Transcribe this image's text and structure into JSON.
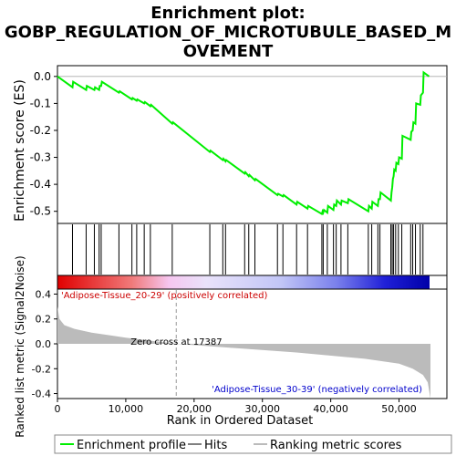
{
  "chart_data": {
    "type": "line",
    "title_line1": "Enrichment plot:",
    "title_line2": "GOBP_REGULATION_OF_MICROTUBULE_BASED_M",
    "title_line3": "OVEMENT",
    "top_panel": {
      "ylabel": "Enrichment score (ES)",
      "ylim": [
        -0.545,
        0.04
      ],
      "yticks": [
        0.0,
        -0.1,
        -0.2,
        -0.3,
        -0.4,
        -0.5
      ],
      "ytick_labels": [
        "0.0",
        "-0.1",
        "-0.2",
        "-0.3",
        "-0.4",
        "-0.5"
      ],
      "series": [
        {
          "name": "Enrichment profile",
          "color": "#00ee00",
          "x": [
            0,
            2200,
            2300,
            4200,
            4300,
            5400,
            5500,
            6100,
            6200,
            6400,
            6500,
            9000,
            9100,
            10900,
            11000,
            11600,
            11700,
            12700,
            12800,
            13600,
            13700,
            16800,
            16900,
            22300,
            22400,
            24200,
            24300,
            24600,
            24700,
            27400,
            27500,
            28000,
            28100,
            28900,
            29000,
            32200,
            32300,
            33000,
            33100,
            35000,
            35100,
            36600,
            36700,
            38700,
            38800,
            38900,
            39000,
            39500,
            39600,
            40400,
            40500,
            40800,
            40900,
            41500,
            41600,
            42500,
            42600,
            45500,
            45600,
            46000,
            46100,
            46900,
            47000,
            47200,
            47300,
            48800,
            48900,
            49000,
            49100,
            49200,
            49300,
            49500,
            49600,
            49900,
            50000,
            50400,
            50500,
            51700,
            51800,
            52000,
            52100,
            52400,
            52500,
            53100,
            53200,
            53500,
            53600,
            54400
          ],
          "y": [
            0.0,
            -0.04,
            -0.02,
            -0.05,
            -0.035,
            -0.05,
            -0.04,
            -0.05,
            -0.035,
            -0.035,
            -0.02,
            -0.06,
            -0.055,
            -0.085,
            -0.08,
            -0.09,
            -0.085,
            -0.1,
            -0.095,
            -0.11,
            -0.105,
            -0.175,
            -0.17,
            -0.28,
            -0.275,
            -0.31,
            -0.305,
            -0.315,
            -0.31,
            -0.36,
            -0.355,
            -0.37,
            -0.365,
            -0.385,
            -0.38,
            -0.44,
            -0.435,
            -0.445,
            -0.44,
            -0.475,
            -0.465,
            -0.49,
            -0.48,
            -0.51,
            -0.5,
            -0.505,
            -0.495,
            -0.505,
            -0.48,
            -0.495,
            -0.475,
            -0.48,
            -0.46,
            -0.475,
            -0.46,
            -0.47,
            -0.455,
            -0.5,
            -0.48,
            -0.49,
            -0.465,
            -0.48,
            -0.455,
            -0.455,
            -0.43,
            -0.46,
            -0.43,
            -0.41,
            -0.38,
            -0.37,
            -0.345,
            -0.35,
            -0.32,
            -0.325,
            -0.3,
            -0.305,
            -0.22,
            -0.235,
            -0.205,
            -0.2,
            -0.17,
            -0.175,
            -0.1,
            -0.105,
            -0.07,
            -0.06,
            0.015,
            0.0
          ]
        }
      ]
    },
    "hits": {
      "name": "Hits",
      "x": [
        2200,
        4200,
        5400,
        6100,
        6400,
        9000,
        10900,
        11600,
        12700,
        13600,
        16800,
        22300,
        24200,
        24600,
        27400,
        28000,
        28900,
        32200,
        33000,
        35000,
        36600,
        38700,
        38900,
        39500,
        40400,
        40800,
        41500,
        42500,
        45500,
        46000,
        46900,
        47200,
        48800,
        49000,
        49200,
        49500,
        49900,
        50400,
        51700,
        52000,
        52400,
        53100,
        53500
      ]
    },
    "bottom_panel": {
      "ylabel": "Ranked list metric (Signal2Noise)",
      "xlabel": "Rank in Ordered Dataset",
      "xlim": [
        0,
        57000
      ],
      "ylim": [
        -0.44,
        0.44
      ],
      "yticks": [
        0.4,
        0.2,
        0.0,
        -0.2,
        -0.4
      ],
      "ytick_labels": [
        "0.4",
        "0.2",
        "0.0",
        "-0.2",
        "-0.4"
      ],
      "xticks": [
        0,
        10000,
        20000,
        30000,
        40000,
        50000
      ],
      "xtick_labels": [
        "0",
        "10,000",
        "20,000",
        "30,000",
        "40,000",
        "50,000"
      ],
      "metric_x": [
        0,
        300,
        1000,
        2500,
        5000,
        10000,
        17387,
        25000,
        35000,
        45000,
        50000,
        52000,
        53500,
        54200,
        54600
      ],
      "metric_y": [
        0.3,
        0.2,
        0.15,
        0.12,
        0.09,
        0.05,
        0.0,
        -0.03,
        -0.07,
        -0.12,
        -0.16,
        -0.2,
        -0.25,
        -0.31,
        -0.44
      ],
      "zero_cross_x": 17387,
      "zero_cross_label": "Zero cross at 17387",
      "pos_label": "'Adipose-Tissue_20-29' (positively correlated)",
      "neg_label": "'Adipose-Tissue_30-39' (negatively correlated)",
      "pos_color": "#cc0000",
      "neg_color": "#0000cc"
    },
    "legend": {
      "placement": "bottom",
      "items": [
        {
          "label": "Enrichment profile",
          "color": "#00ee00"
        },
        {
          "label": "Hits",
          "color": "#000000"
        },
        {
          "label": "Ranking metric scores",
          "color": "#bbbbbb"
        }
      ]
    }
  }
}
